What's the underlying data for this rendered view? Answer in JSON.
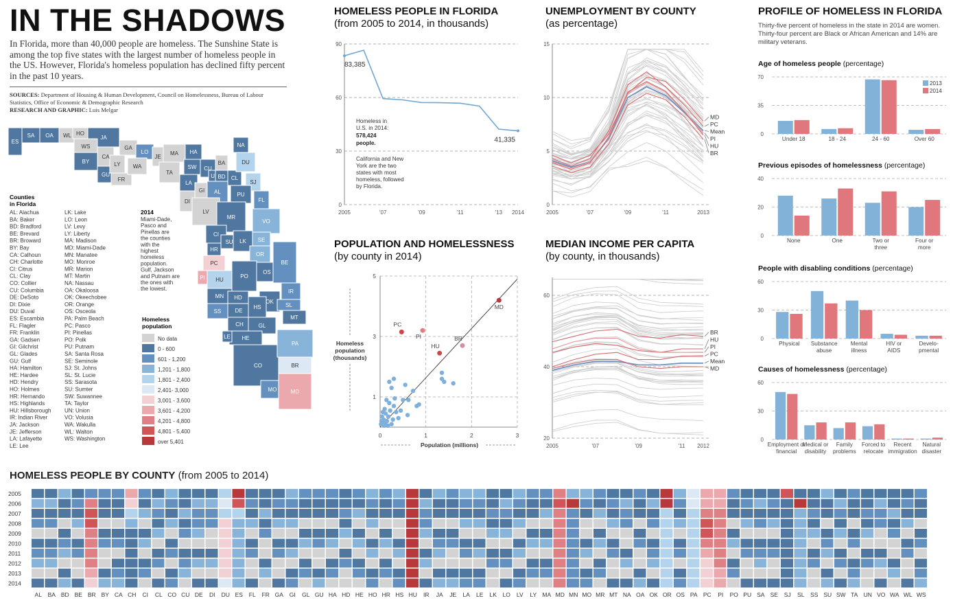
{
  "header": {
    "title": "IN THE SHADOWS",
    "intro": "In Florida, more than 40,000 people are homeless. The Sunshine State is among the top five states with the largest number of homeless people in the US. However, Florida's homeless population has declined fifty percent in the past 10 years.",
    "sources_label": "SOURCES:",
    "sources_text": "Department of Housing & Human Development, Council on Homelessness, Bureau of Labour Statistics, Office of Economic & Demographic Research",
    "credit_label": "RESEARCH AND GRAPHIC:",
    "credit_text": "Luis Melgar"
  },
  "colors": {
    "nodata": "#d3d3d3",
    "c1": "#4f77a0",
    "c2": "#6390bf",
    "c3": "#88b4da",
    "c4": "#b4d3ec",
    "c5": "#dce8f3",
    "c6": "#f3d0d3",
    "c7": "#eba9ae",
    "c8": "#de8084",
    "c9": "#cf5558",
    "c10": "#b8393b",
    "y2013": "#82b2d8",
    "y2014": "#e0777c"
  },
  "map": {
    "counties_heading": "Counties in Florida",
    "abbrev_col1": [
      "AL: Alachua",
      "BA: Baker",
      "BD: Bradford",
      "BE: Brevard",
      "BR: Broward",
      "BY: Bay",
      "CA: Calhoun",
      "CH: Charlotte",
      "CI: Citrus",
      "CL: Clay",
      "CO: Collier",
      "CU: Columbia",
      "DE: DeSoto",
      "DI: Dixie",
      "DU: Duval",
      "ES: Escambia",
      "FL: Flagler",
      "FR: Franklin",
      "GA: Gadsen",
      "GI: Gilchrist",
      "GL: Glades",
      "GU: Gulf",
      "HA: Hamilton",
      "HE: Hardee",
      "HD: Hendry",
      "HO: Holmes",
      "HR: Hernando",
      "HS: Highlands",
      "HU: Hillsborough",
      "IR: Indian River",
      "JA: Jackson",
      "JE: Jefferson",
      "LA: Lafayette",
      "LE: Lee"
    ],
    "abbrev_col2": [
      "LK: Lake",
      "LO: Leon",
      "LV: Levy",
      "LY: Liberty",
      "MA: Madison",
      "MD: Miami-Dade",
      "MN: Manatee",
      "MO: Monroe",
      "MR: Marion",
      "MT: Martin",
      "NA: Nassau",
      "OA: Okaloosa",
      "OK: Okeechobee",
      "OR: Orange",
      "OS: Osceola",
      "PA: Palm Beach",
      "PC: Pasco",
      "PI: Pinellas",
      "PO: Polk",
      "PU: Putnam",
      "SA: Santa Rosa",
      "SE: Seminole",
      "SJ: St. Johns",
      "SL: St. Lucie",
      "SS: Sarasota",
      "SU: Sumter",
      "SW: Suwannee",
      "TA: Taylor",
      "UN: Union",
      "VO: Volusia",
      "WA: Wakulla",
      "WL: Walton",
      "WS: Washington"
    ],
    "note_year": "2014",
    "note": "Miami-Dade, Pasco and Pinellas are the counties with the highest homeless population. Gulf, Jackson and Putnam are the ones with the lowest.",
    "legend_title": "Homeless population",
    "legend": [
      "No data",
      "0 - 600",
      "601 - 1,200",
      "1,201 - 1,800",
      "1,801 - 2,400",
      "2,401- 3,000",
      "3,001 - 3,600",
      "3,601 - 4,200",
      "4,201 - 4,800",
      "4,801 - 5,400",
      "over 5,401"
    ],
    "panhandle": [
      "ES",
      "SA",
      "OA",
      "WL",
      "HO",
      "JA",
      "WS",
      "BY",
      "CA",
      "GU",
      "LY",
      "FR",
      "GA",
      "LO",
      "JE",
      "MA",
      "WA",
      "TA",
      "HA",
      "SW",
      "CU",
      "BA",
      "NA",
      "LA",
      "GI",
      "DI",
      "UN",
      "BD",
      "CL",
      "DU",
      "SJ",
      "AL",
      "PU",
      "FL",
      "LV",
      "MR",
      "VO",
      "CI",
      "SU",
      "LK",
      "SE",
      "HR",
      "OR",
      "PC",
      "PI",
      "HU",
      "PO",
      "OS",
      "BE",
      "MN",
      "IR",
      "SS",
      "DE",
      "HD",
      "OK",
      "SL",
      "HS",
      "MT",
      "CH",
      "GL",
      "HE",
      "LE",
      "CO",
      "PA",
      "BR",
      "MO",
      "MD"
    ]
  },
  "chart_data": [
    {
      "id": "florida",
      "type": "line",
      "title": "HOMELESS PEOPLE IN FLORIDA",
      "subtitle": "(from 2005 to 2014, in thousands)",
      "x": [
        2005,
        2006,
        2007,
        2008,
        2009,
        2010,
        2011,
        2012,
        2013,
        2014
      ],
      "values": [
        83.385,
        86.5,
        59.4,
        58.7,
        57.2,
        57.1,
        56.8,
        55.2,
        42.3,
        41.335
      ],
      "ylim": [
        0,
        90
      ],
      "yticks": [
        0,
        30,
        60,
        90
      ],
      "xticks": [
        "2005",
        "'07",
        "'09",
        "'11",
        "'13",
        "2014"
      ],
      "label_first": "83,385",
      "label_last": "41,335",
      "note1a": "Homeless in",
      "note1b": "U.S. in 2014:",
      "note1c": "578,424",
      "note1d": "people.",
      "note2": [
        "California and New",
        "York are the two",
        "states with most",
        "homeless, followed",
        "by Florida."
      ]
    },
    {
      "id": "unemployment",
      "type": "line",
      "title": "UNEMPLOYMENT BY COUNTY",
      "subtitle": "(as percentage)",
      "x": [
        2005,
        2006,
        2007,
        2008,
        2009,
        2010,
        2011,
        2012,
        2013
      ],
      "ylim": [
        0,
        15
      ],
      "yticks": [
        0,
        5,
        10,
        15
      ],
      "xticks": [
        "2005",
        "'07",
        "'09",
        "'11",
        "2013"
      ],
      "highlight": [
        {
          "name": "MD",
          "values": [
            4.6,
            3.9,
            4.6,
            6.6,
            10.4,
            11.9,
            11.5,
            9.8,
            7.8
          ]
        },
        {
          "name": "PC",
          "values": [
            4.3,
            3.6,
            4.3,
            6.9,
            11.2,
            12.4,
            11.0,
            9.3,
            7.3
          ]
        },
        {
          "name": "Mean",
          "values": [
            4.1,
            3.5,
            4.0,
            6.2,
            10.0,
            11.0,
            10.2,
            8.6,
            6.9
          ]
        },
        {
          "name": "PI",
          "values": [
            4.0,
            3.4,
            4.0,
            6.3,
            10.3,
            11.4,
            10.5,
            8.7,
            6.7
          ]
        },
        {
          "name": "HU",
          "values": [
            3.9,
            3.3,
            3.9,
            6.3,
            10.5,
            11.5,
            10.6,
            8.7,
            6.5
          ]
        },
        {
          "name": "BR",
          "values": [
            3.6,
            3.0,
            3.5,
            5.7,
            9.3,
            10.4,
            9.8,
            8.2,
            6.1
          ]
        }
      ],
      "labels": [
        "MD",
        "PC",
        "Mean",
        "PI",
        "HU",
        "BR"
      ]
    },
    {
      "id": "scatter",
      "type": "scatter",
      "title": "POPULATION AND HOMELESSNESS",
      "subtitle": "(by county in 2014)",
      "xlabel": "Population (millions)",
      "ylabel": [
        "Homeless",
        "population",
        "(thousands)"
      ],
      "xlim": [
        0,
        3
      ],
      "ylim": [
        0,
        5
      ],
      "xticks": [
        "0",
        "1",
        "2",
        "3"
      ],
      "yticks": [
        "1",
        "3",
        "5"
      ],
      "points": [
        [
          0.47,
          3.15
        ],
        [
          0.93,
          3.2
        ],
        [
          1.3,
          2.45
        ],
        [
          1.8,
          2.7
        ],
        [
          2.6,
          4.2
        ],
        [
          0.2,
          1.5
        ],
        [
          0.25,
          1.3
        ],
        [
          0.3,
          1.6
        ],
        [
          0.55,
          1.4
        ],
        [
          0.62,
          0.9
        ],
        [
          0.72,
          1.2
        ],
        [
          0.8,
          0.7
        ],
        [
          1.35,
          1.6
        ],
        [
          1.35,
          1.8
        ],
        [
          1.4,
          1.5
        ],
        [
          1.6,
          1.45
        ],
        [
          0.5,
          0.9
        ],
        [
          0.45,
          0.55
        ],
        [
          0.35,
          0.5
        ],
        [
          0.4,
          0.3
        ],
        [
          0.3,
          0.7
        ],
        [
          0.22,
          0.55
        ],
        [
          0.18,
          0.35
        ],
        [
          0.12,
          0.45
        ],
        [
          0.08,
          0.25
        ],
        [
          0.05,
          0.15
        ],
        [
          0.15,
          0.2
        ],
        [
          0.1,
          0.6
        ],
        [
          0.28,
          0.25
        ],
        [
          0.32,
          0.95
        ],
        [
          0.06,
          0.5
        ],
        [
          0.02,
          0.1
        ],
        [
          0.04,
          0.35
        ],
        [
          0.2,
          0.8
        ],
        [
          0.14,
          0.9
        ],
        [
          0.6,
          0.4
        ],
        [
          0.85,
          0.75
        ],
        [
          0.25,
          0.1
        ],
        [
          0.09,
          0.05
        ],
        [
          0.17,
          0.05
        ],
        [
          0.03,
          0.2
        ],
        [
          0.11,
          0.15
        ]
      ],
      "labeled": [
        {
          "name": "PC",
          "x": 0.47,
          "y": 3.15,
          "color": "#c9474a"
        },
        {
          "name": "PI",
          "x": 0.93,
          "y": 3.2,
          "color": "#e07c80"
        },
        {
          "name": "HU",
          "x": 1.3,
          "y": 2.45,
          "color": "#c9474a"
        },
        {
          "name": "BR",
          "x": 1.8,
          "y": 2.7,
          "color": "#d68fa1"
        },
        {
          "name": "MD",
          "x": 2.6,
          "y": 4.2,
          "color": "#b8393b"
        }
      ]
    },
    {
      "id": "income",
      "type": "line",
      "title": "MEDIAN INCOME PER CAPITA",
      "subtitle": "(by county, in thousands)",
      "x": [
        2005,
        2006,
        2007,
        2008,
        2009,
        2010,
        2011,
        2012
      ],
      "ylim": [
        20,
        65
      ],
      "yticks": [
        20,
        40,
        60
      ],
      "xticks": [
        "2005",
        "'07",
        "'09",
        "'11",
        "2012"
      ],
      "highlight": [
        {
          "name": "BR",
          "values": [
            47,
            48.5,
            50,
            50.5,
            48.5,
            48,
            49,
            48.5
          ]
        },
        {
          "name": "HU",
          "values": [
            44,
            45.5,
            46.5,
            46,
            44.5,
            44,
            45,
            45
          ]
        },
        {
          "name": "PI",
          "values": [
            45,
            47,
            48,
            48,
            45,
            44,
            44,
            44
          ]
        },
        {
          "name": "PC",
          "values": [
            40,
            42,
            43.5,
            44,
            42,
            42,
            43,
            43
          ]
        },
        {
          "name": "Mean",
          "values": [
            39,
            40.5,
            41.5,
            41.5,
            40.5,
            40.5,
            41,
            41
          ]
        },
        {
          "name": "MD",
          "values": [
            39.5,
            41,
            42,
            42,
            40,
            39.5,
            40,
            40
          ]
        }
      ],
      "labels": [
        "BR",
        "HU",
        "PI",
        "PC",
        "Mean",
        "MD"
      ]
    },
    {
      "id": "profile",
      "type": "bar",
      "title": "PROFILE OF HOMELESS IN FLORIDA",
      "intro": "Thirty-five percent of homeless in the state in 2014 are women. Thirty-four percent are Black or African American and 14% are military veterans.",
      "legend": [
        "2013",
        "2014"
      ],
      "panels": [
        {
          "title": "Age of homeless people",
          "unit": "(percentage)",
          "ymax": 70,
          "yticks": [
            0,
            35,
            70
          ],
          "categories": [
            "Under 18",
            "18 - 24",
            "24 - 60",
            "Over 60"
          ],
          "s2013": [
            16,
            6,
            67,
            5
          ],
          "s2014": [
            17,
            7,
            66,
            6
          ]
        },
        {
          "title": "Previous episodes of homelessness",
          "unit": "(percentage)",
          "ymax": 40,
          "yticks": [
            0,
            20,
            40
          ],
          "categories": [
            "None",
            "One",
            "Two or three",
            "Four or more"
          ],
          "s2013": [
            28,
            26,
            23,
            20
          ],
          "s2014": [
            14,
            33,
            31,
            25
          ]
        },
        {
          "title": "People with disabling conditions",
          "unit": "(percentage)",
          "ymax": 60,
          "yticks": [
            0,
            30,
            60
          ],
          "categories": [
            "Physical",
            "Substance abuse",
            "Mental illness",
            "HIV or AIDS",
            "Develo- pmental"
          ],
          "s2013": [
            28,
            50,
            40,
            5,
            3
          ],
          "s2014": [
            26,
            37,
            30,
            4,
            3
          ]
        },
        {
          "title": "Causes of homelessness",
          "unit": "(percentage)",
          "ymax": 60,
          "yticks": [
            0,
            30,
            60
          ],
          "categories": [
            "Employment or financial",
            "Medical or disability",
            "Family problems",
            "Forced to relocate",
            "Recent immigration",
            "Natural disaster"
          ],
          "s2013": [
            50,
            15,
            12,
            14,
            1,
            1
          ],
          "s2014": [
            48,
            18,
            18,
            16,
            1,
            2
          ]
        }
      ]
    },
    {
      "id": "heatmap",
      "type": "heatmap",
      "title": "HOMELESS PEOPLE BY COUNTY",
      "subtitle": "(from 2005 to 2014)",
      "years": [
        "2005",
        "2006",
        "2007",
        "2008",
        "2009",
        "2010",
        "2011",
        "2012",
        "2013",
        "2014"
      ],
      "counties": [
        "AL",
        "BA",
        "BD",
        "BE",
        "BR",
        "BY",
        "CA",
        "CH",
        "CI",
        "CL",
        "CO",
        "CU",
        "DE",
        "DI",
        "DU",
        "ES",
        "FL",
        "FR",
        "GA",
        "GI",
        "GL",
        "GU",
        "HA",
        "HD",
        "HE",
        "HO",
        "HR",
        "HS",
        "HU",
        "IR",
        "JA",
        "JE",
        "LA",
        "LE",
        "LK",
        "LO",
        "LV",
        "LY",
        "MA",
        "MD",
        "MN",
        "MO",
        "MR",
        "MT",
        "NA",
        "OA",
        "OK",
        "OR",
        "OS",
        "PA",
        "PC",
        "PI",
        "PO",
        "PU",
        "SA",
        "SE",
        "SJ",
        "SL",
        "SS",
        "SU",
        "SW",
        "TA",
        "UN",
        "VO",
        "WA",
        "WL",
        "WS"
      ]
    }
  ]
}
